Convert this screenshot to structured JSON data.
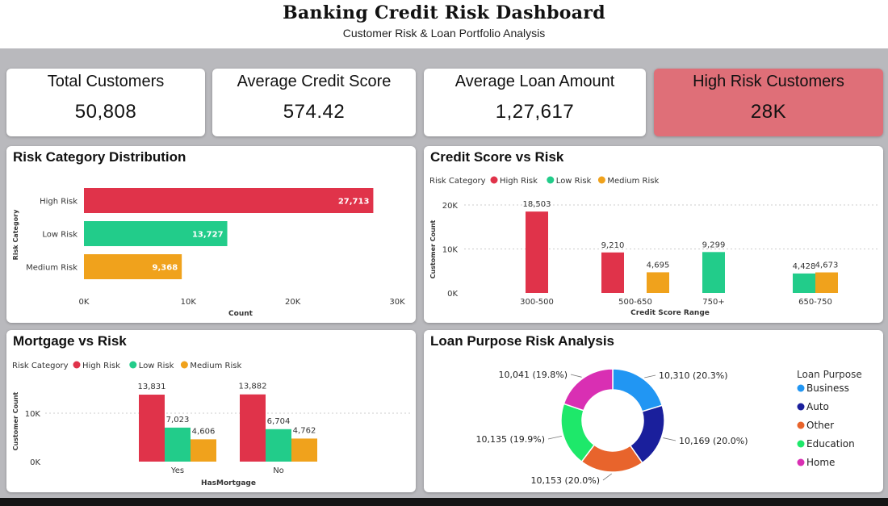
{
  "header": {
    "title": "Banking Credit Risk Dashboard",
    "subtitle": "Customer Risk & Loan Portfolio Analysis"
  },
  "kpis": [
    {
      "label": "Total Customers",
      "value": "50,808"
    },
    {
      "label": "Average Credit Score",
      "value": "574.42"
    },
    {
      "label": "Average Loan Amount",
      "value": "1,27,617"
    },
    {
      "label": "High Risk Customers",
      "value": "28K",
      "color": "#df6f78"
    }
  ],
  "colors": {
    "high": "#e0334a",
    "low": "#22cc8a",
    "medium": "#f0a21c"
  },
  "chart_data": [
    {
      "type": "bar",
      "orientation": "horizontal",
      "title": "Risk Category Distribution",
      "xlabel": "Count",
      "ylabel": "Risk Category",
      "categories": [
        "High Risk",
        "Low Risk",
        "Medium Risk"
      ],
      "values": [
        27713,
        13727,
        9368
      ],
      "value_labels": [
        "27,713",
        "13,727",
        "9,368"
      ],
      "xlim": [
        0,
        30000
      ],
      "xticks": [
        "0K",
        "10K",
        "20K",
        "30K"
      ],
      "grid": false
    },
    {
      "type": "bar",
      "title": "Credit Score vs Risk",
      "legend_title": "Risk Category",
      "xlabel": "Credit Score Range",
      "ylabel": "Customer Count",
      "categories": [
        "300-500",
        "500-650",
        "750+",
        "650-750"
      ],
      "series": [
        {
          "name": "High Risk",
          "values": [
            18503,
            9210,
            null,
            null
          ],
          "labels": [
            "18,503",
            "9,210",
            "",
            ""
          ]
        },
        {
          "name": "Low Risk",
          "values": [
            null,
            null,
            9299,
            4428
          ],
          "labels": [
            "",
            "",
            "9,299",
            "4,428"
          ]
        },
        {
          "name": "Medium Risk",
          "values": [
            null,
            4695,
            null,
            4673
          ],
          "labels": [
            "",
            "4,695",
            "",
            "4,673"
          ]
        }
      ],
      "ylim": [
        0,
        20000
      ],
      "yticks": [
        "0K",
        "10K",
        "20K"
      ],
      "legend": "top-left",
      "grid": true
    },
    {
      "type": "bar",
      "title": "Mortgage vs Risk",
      "legend_title": "Risk Category",
      "xlabel": "HasMortgage",
      "ylabel": "Customer Count",
      "categories": [
        "Yes",
        "No"
      ],
      "series": [
        {
          "name": "High Risk",
          "values": [
            13831,
            13882
          ],
          "labels": [
            "13,831",
            "13,882"
          ]
        },
        {
          "name": "Low Risk",
          "values": [
            7023,
            6704
          ],
          "labels": [
            "7,023",
            "6,704"
          ]
        },
        {
          "name": "Medium Risk",
          "values": [
            4606,
            4762
          ],
          "labels": [
            "4,606",
            "4,762"
          ]
        }
      ],
      "ylim": [
        0,
        15000
      ],
      "yticks": [
        "0K",
        "10K"
      ],
      "legend": "top-left",
      "grid": true
    },
    {
      "type": "pie",
      "donut": true,
      "title": "Loan Purpose Risk Analysis",
      "legend_title": "Loan Purpose",
      "legend": "right",
      "categories": [
        "Business",
        "Auto",
        "Other",
        "Education",
        "Home"
      ],
      "values": [
        10310,
        10169,
        10153,
        10135,
        10041
      ],
      "labels": [
        "10,310 (20.3%)",
        "10,169 (20.0%)",
        "10,153 (20.0%)",
        "10,135 (19.9%)",
        "10,041 (19.8%)"
      ],
      "colors": [
        "#2196f3",
        "#1a1f9c",
        "#e8642c",
        "#1ee86a",
        "#d92fb3"
      ]
    }
  ]
}
